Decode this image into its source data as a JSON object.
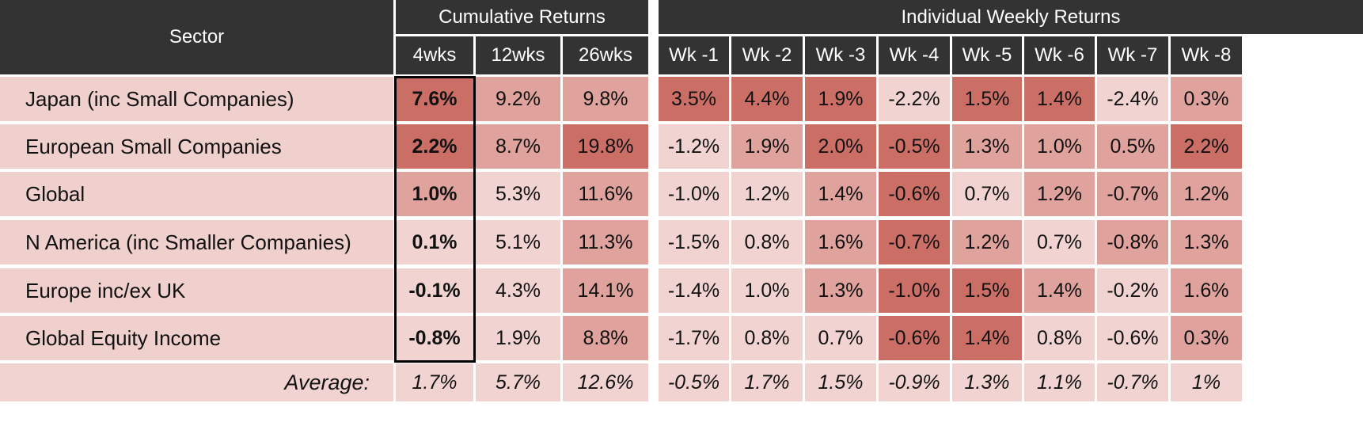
{
  "chart_data": {
    "type": "table",
    "header": {
      "sector": "Sector",
      "cumulative_group": "Cumulative Returns",
      "weekly_group": "Individual Weekly Returns",
      "columns": [
        "4wks",
        "12wks",
        "26wks",
        "Wk -1",
        "Wk -2",
        "Wk -3",
        "Wk -4",
        "Wk -5",
        "Wk -6",
        "Wk -7",
        "Wk -8"
      ]
    },
    "rows": [
      {
        "sector": "Japan (inc Small Companies)",
        "values": [
          "7.6%",
          "9.2%",
          "9.8%",
          "3.5%",
          "4.4%",
          "1.9%",
          "-2.2%",
          "1.5%",
          "1.4%",
          "-2.4%",
          "0.3%"
        ]
      },
      {
        "sector": "European Small Companies",
        "values": [
          "2.2%",
          "8.7%",
          "19.8%",
          "-1.2%",
          "1.9%",
          "2.0%",
          "-0.5%",
          "1.3%",
          "1.0%",
          "0.5%",
          "2.2%"
        ]
      },
      {
        "sector": "Global",
        "values": [
          "1.0%",
          "5.3%",
          "11.6%",
          "-1.0%",
          "1.2%",
          "1.4%",
          "-0.6%",
          "0.7%",
          "1.2%",
          "-0.7%",
          "1.2%"
        ]
      },
      {
        "sector": "N America (inc Smaller Companies)",
        "values": [
          "0.1%",
          "5.1%",
          "11.3%",
          "-1.5%",
          "0.8%",
          "1.6%",
          "-0.7%",
          "1.2%",
          "0.7%",
          "-0.8%",
          "1.3%"
        ]
      },
      {
        "sector": "Europe inc/ex UK",
        "values": [
          "-0.1%",
          "4.3%",
          "14.1%",
          "-1.4%",
          "1.0%",
          "1.3%",
          "-1.0%",
          "1.5%",
          "1.4%",
          "-0.2%",
          "1.6%"
        ]
      },
      {
        "sector": "Global Equity Income",
        "values": [
          "-0.8%",
          "1.9%",
          "8.8%",
          "-1.7%",
          "0.8%",
          "0.7%",
          "-0.6%",
          "1.4%",
          "0.8%",
          "-0.6%",
          "0.3%"
        ]
      }
    ],
    "average": {
      "label": "Average:",
      "values": [
        "1.7%",
        "5.7%",
        "12.6%",
        "-0.5%",
        "1.7%",
        "1.5%",
        "-0.9%",
        "1.3%",
        "1.1%",
        "-0.7%",
        "1%"
      ]
    },
    "colors": {
      "header_bg": "#333333",
      "header_text": "#ffffff",
      "sector_bg": "#efd0cd",
      "light": "#f1d4d1",
      "mid": "#dfa29d",
      "dark": "#ca6e66"
    },
    "cell_shades": [
      [
        "dark",
        "mid",
        "mid",
        "dark",
        "dark",
        "dark",
        "light",
        "dark",
        "dark",
        "light",
        "mid"
      ],
      [
        "dark",
        "mid",
        "dark",
        "light",
        "mid",
        "dark",
        "dark",
        "mid",
        "mid",
        "mid",
        "dark"
      ],
      [
        "mid",
        "light",
        "mid",
        "light",
        "light",
        "mid",
        "dark",
        "light",
        "mid",
        "mid",
        "mid"
      ],
      [
        "light",
        "light",
        "mid",
        "light",
        "light",
        "mid",
        "dark",
        "mid",
        "light",
        "mid",
        "mid"
      ],
      [
        "light",
        "light",
        "mid",
        "light",
        "light",
        "mid",
        "dark",
        "dark",
        "mid",
        "light",
        "mid"
      ],
      [
        "light",
        "light",
        "mid",
        "light",
        "light",
        "light",
        "dark",
        "dark",
        "light",
        "light",
        "mid"
      ]
    ]
  }
}
